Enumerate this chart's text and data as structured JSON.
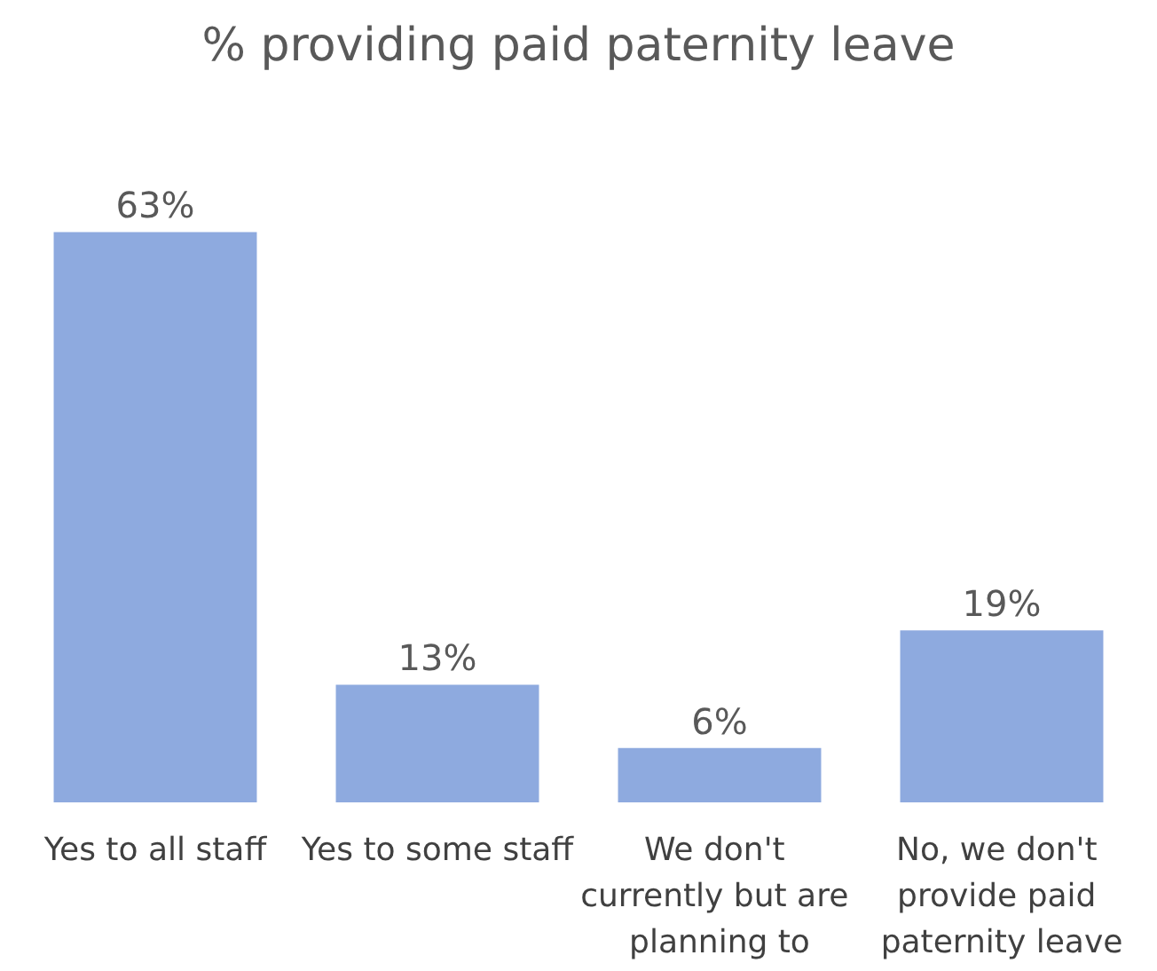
{
  "chart_data": {
    "type": "bar",
    "title": "% providing paid paternity leave",
    "categories": [
      "Yes to all staff",
      "Yes to some staff",
      "We don't currently but are planning to",
      "No, we don't provide paid paternity leave"
    ],
    "values": [
      63,
      13,
      6,
      19
    ],
    "value_labels": [
      "63%",
      "13%",
      "6%",
      "19%"
    ],
    "color": "#8eaadf"
  }
}
